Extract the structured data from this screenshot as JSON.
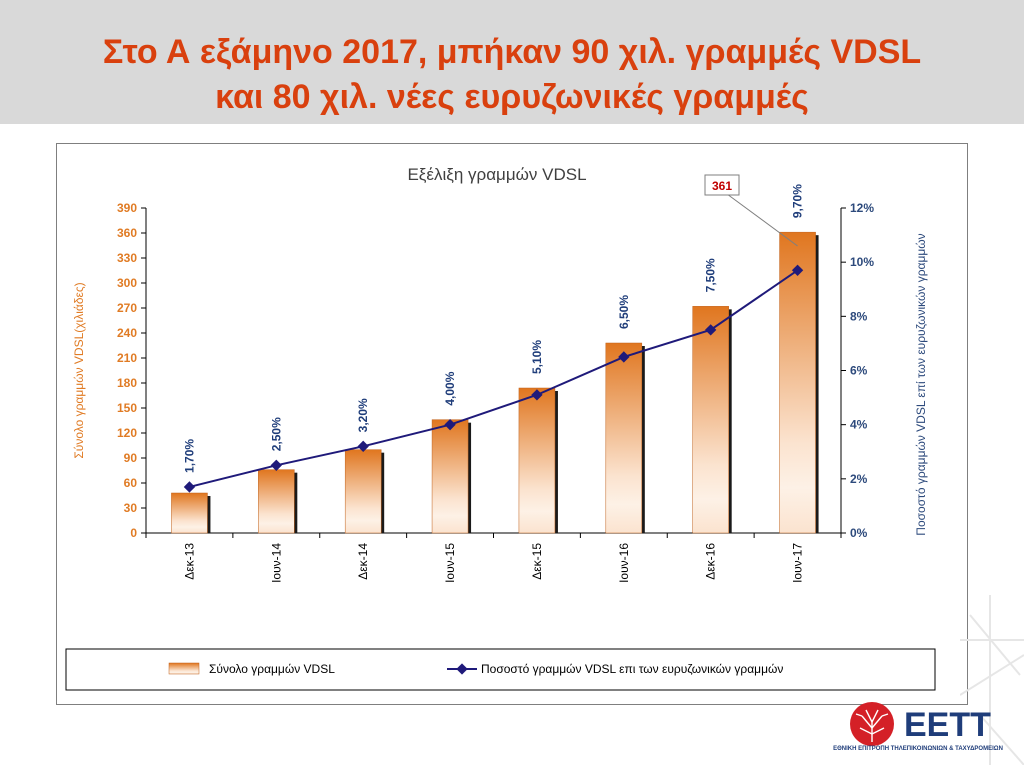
{
  "slide": {
    "title_line1": "Στο Α εξάμηνο 2017, μπήκαν 90 χιλ. γραμμές VDSL",
    "title_line2": "και 80 χιλ. νέες ευρυζωνικές γραμμές"
  },
  "colors": {
    "title": "#d9400e",
    "bar_dark": "#e0761f",
    "bar_light": "#fbe3cf",
    "line": "#1f1a7a",
    "left_axis_text": "#e07b24",
    "right_axis_text": "#2d4a7c"
  },
  "chart_data": {
    "type": "bar",
    "title": "Εξέλιξη  γραμμών VDSL",
    "categories": [
      "Δεκ-13",
      "Ιουν-14",
      "Δεκ-14",
      "Ιουν-15",
      "Δεκ-15",
      "Ιουν-16",
      "Δεκ-16",
      "Ιουν-17"
    ],
    "series": [
      {
        "name": "Σύνολο γραμμών  VDSL",
        "type": "bar",
        "axis": "left",
        "values": [
          48,
          76,
          100,
          136,
          174,
          228,
          272,
          361
        ]
      },
      {
        "name": "Ποσοστό γραμμών VDSL επι των ευρυζωνικών  γραμμών",
        "type": "line",
        "axis": "right",
        "values": [
          1.7,
          2.5,
          3.2,
          4.0,
          5.1,
          6.5,
          7.5,
          9.7
        ],
        "labels": [
          "1,70%",
          "2,50%",
          "3,20%",
          "4,00%",
          "5,10%",
          "6,50%",
          "7,50%",
          "9,70%"
        ]
      }
    ],
    "ylabel": "Σύνολο  γραμμών  VDSL(χιλιάδες)",
    "y2label": "Ποσοστό  γραμμών  VDSL επί των ευρυζωνικών  γραμμών",
    "ylim": [
      0,
      390
    ],
    "yticks": [
      "0",
      "30",
      "60",
      "90",
      "120",
      "150",
      "180",
      "210",
      "240",
      "270",
      "300",
      "330",
      "360",
      "390"
    ],
    "y2lim": [
      0,
      12
    ],
    "y2ticks": [
      "0%",
      "2%",
      "4%",
      "6%",
      "8%",
      "10%",
      "12%"
    ],
    "callout": "361",
    "legend_position": "bottom",
    "grid": false
  },
  "logo": {
    "name": "ΕΕΤΤ",
    "tagline": "ΕΘΝΙΚΗ ΕΠΙΤΡΟΠΗ ΤΗΛΕΠΙΚΟΙΝΩΝΙΩΝ & ΤΑΧΥΔΡΟΜΕΙΩΝ"
  }
}
